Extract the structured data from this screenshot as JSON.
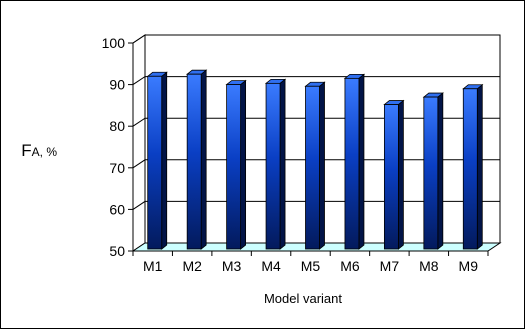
{
  "chart_data": {
    "type": "bar",
    "style": "3d-column",
    "categories": [
      "M1",
      "M2",
      "M3",
      "M4",
      "M5",
      "M6",
      "M7",
      "M8",
      "M9"
    ],
    "values": [
      92,
      92.5,
      90,
      90.3,
      89.6,
      91.5,
      85.2,
      87,
      89
    ],
    "xlabel": "Model variant",
    "ylabel": {
      "main": "F",
      "sub": "A",
      "unit": ", %"
    },
    "ylim": [
      50,
      100
    ],
    "yticks": [
      50,
      60,
      70,
      80,
      90,
      100
    ],
    "grid": true,
    "legend": "none",
    "colors": {
      "bar_light": "#3a7bff",
      "bar_mid": "#0a3fc4",
      "bar_dark": "#031a5c",
      "bar_top": "#2f6ff0",
      "bar_side": "#021447",
      "floor": "#ccffff",
      "wall": "#ffffff",
      "grid": "#000000"
    }
  }
}
